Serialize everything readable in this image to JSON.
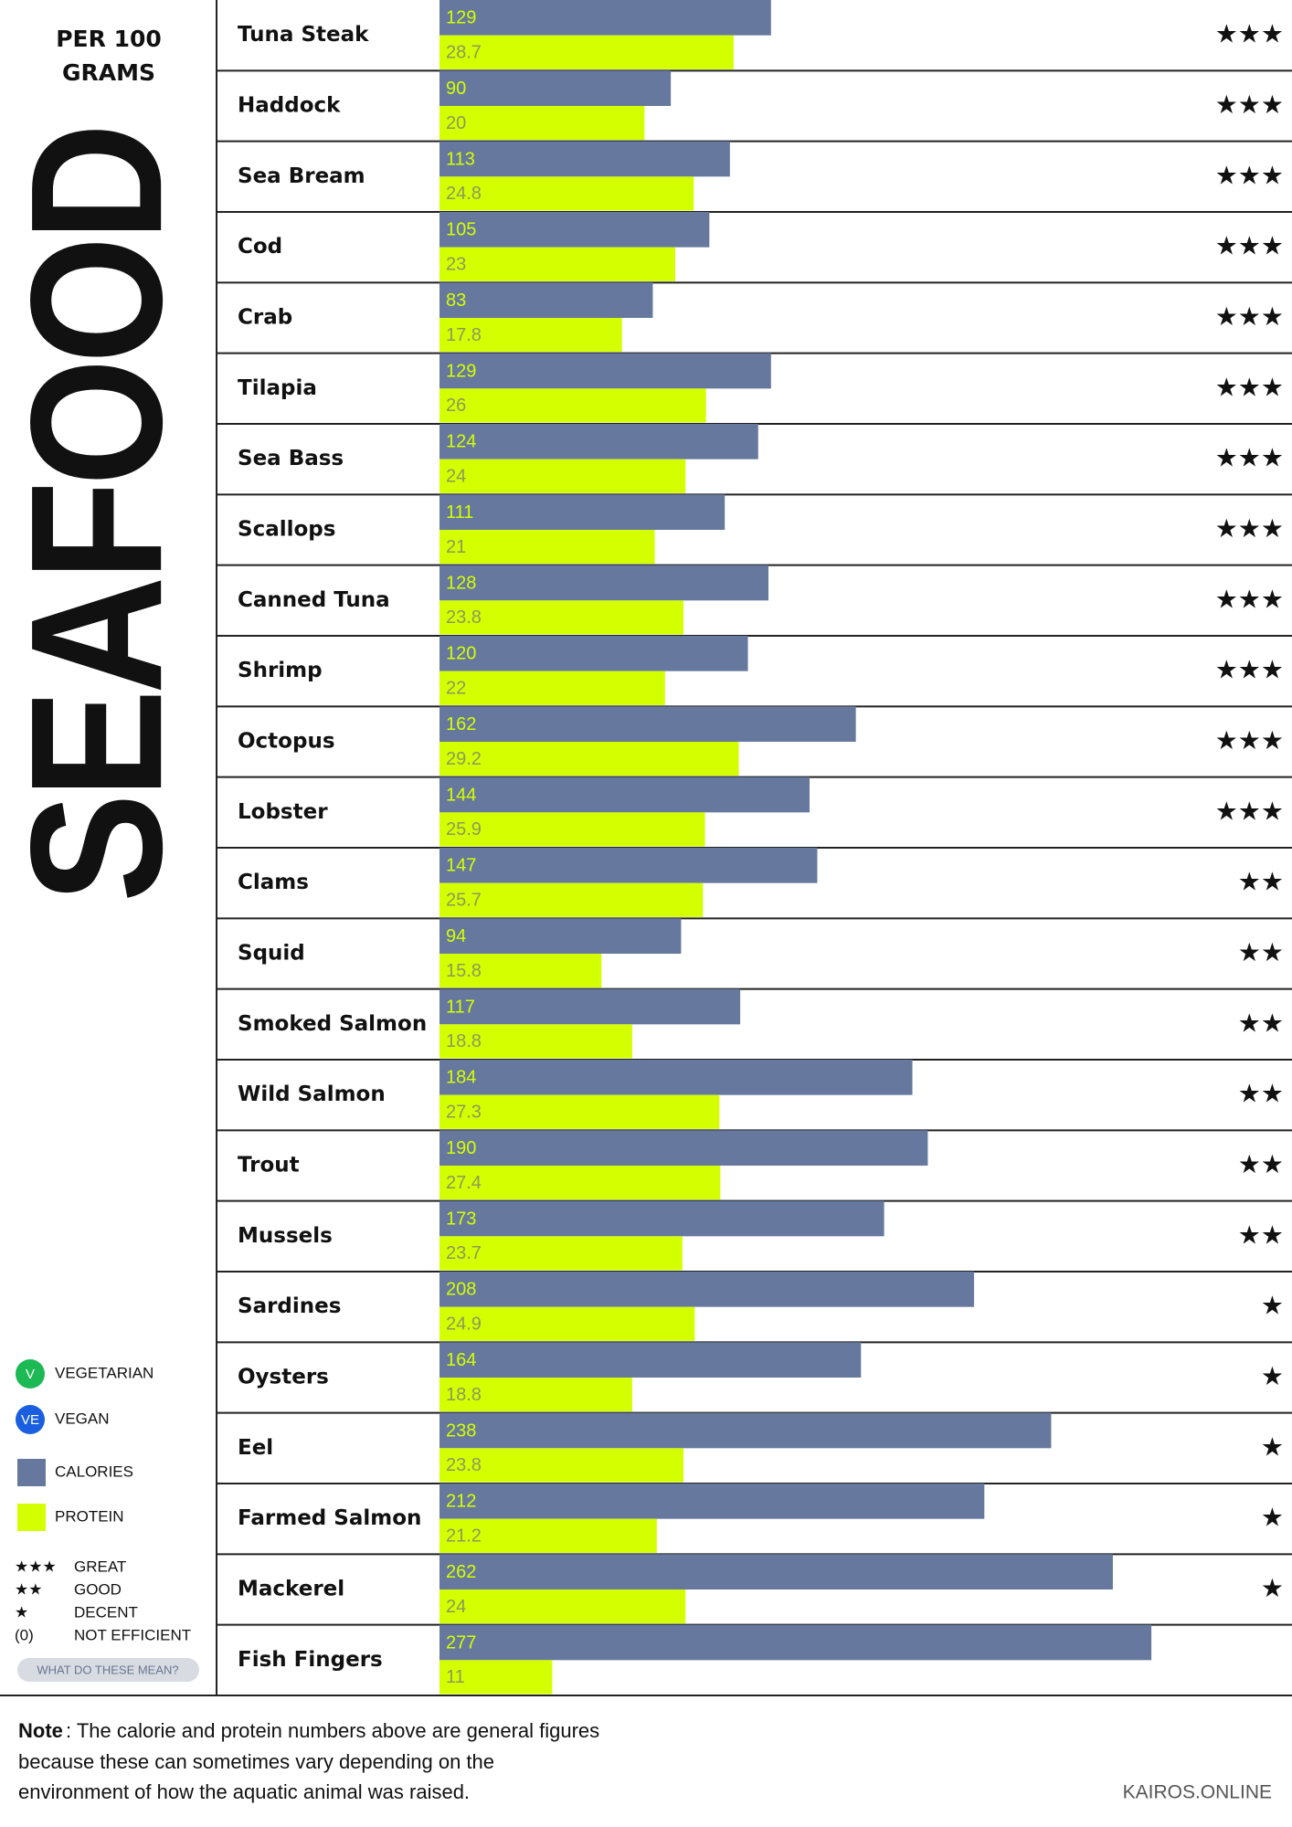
{
  "chart_data": {
    "type": "bar",
    "title": "SEAFOOD",
    "subtitle": [
      "PER 100",
      "GRAMS"
    ],
    "categories": [
      "Tuna Steak",
      "Haddock",
      "Sea Bream",
      "Cod",
      "Crab",
      "Tilapia",
      "Sea Bass",
      "Scallops",
      "Canned Tuna",
      "Shrimp",
      "Octopus",
      "Lobster",
      "Clams",
      "Squid",
      "Smoked Salmon",
      "Wild Salmon",
      "Trout",
      "Mussels",
      "Sardines",
      "Oysters",
      "Eel",
      "Farmed Salmon",
      "Mackerel",
      "Fish Fingers"
    ],
    "series": [
      {
        "name": "CALORIES",
        "color": "#66789e",
        "xlim": [
          0,
          331
        ],
        "values": [
          129,
          90,
          113,
          105,
          83,
          129,
          124,
          111,
          128,
          120,
          162,
          144,
          147,
          94,
          117,
          184,
          190,
          173,
          208,
          164,
          238,
          212,
          262,
          277
        ]
      },
      {
        "name": "PROTEIN",
        "color": "#d4ff00",
        "xlim": [
          0,
          83
        ],
        "values": [
          28.7,
          20,
          24.8,
          23,
          17.8,
          26,
          24,
          21,
          23.8,
          22,
          29.2,
          25.9,
          25.7,
          15.8,
          18.8,
          27.3,
          27.4,
          23.7,
          24.9,
          18.8,
          23.8,
          21.2,
          24,
          11
        ]
      }
    ],
    "ratings": [
      "★★★",
      "★★★",
      "★★★",
      "★★★",
      "★★★",
      "★★★",
      "★★★",
      "★★★",
      "★★★",
      "★★★",
      "★★★",
      "★★★",
      "★★",
      "★★",
      "★★",
      "★★",
      "★★",
      "★★",
      "★",
      "★",
      "★",
      "★",
      "★",
      null
    ]
  },
  "legend": {
    "diet": [
      {
        "badge": "V",
        "label": "VEGETARIAN",
        "color": "#1db954"
      },
      {
        "badge": "VE",
        "label": "VEGAN",
        "color": "#1a5fe0"
      }
    ],
    "ratings": [
      {
        "symbol": "★★★",
        "label": "GREAT"
      },
      {
        "symbol": "★★",
        "label": "GOOD"
      },
      {
        "symbol": "★",
        "label": "DECENT"
      },
      {
        "symbol": "(0)",
        "label": "NOT EFFICIENT"
      }
    ],
    "button": "WHAT DO THESE MEAN?"
  },
  "note": {
    "label": "Note",
    "lines": [
      ": The calorie and protein numbers above are general figures",
      "because these can sometimes vary depending on the",
      "environment of how the aquatic animal was raised."
    ]
  },
  "footer": "KAIROS.ONLINE"
}
